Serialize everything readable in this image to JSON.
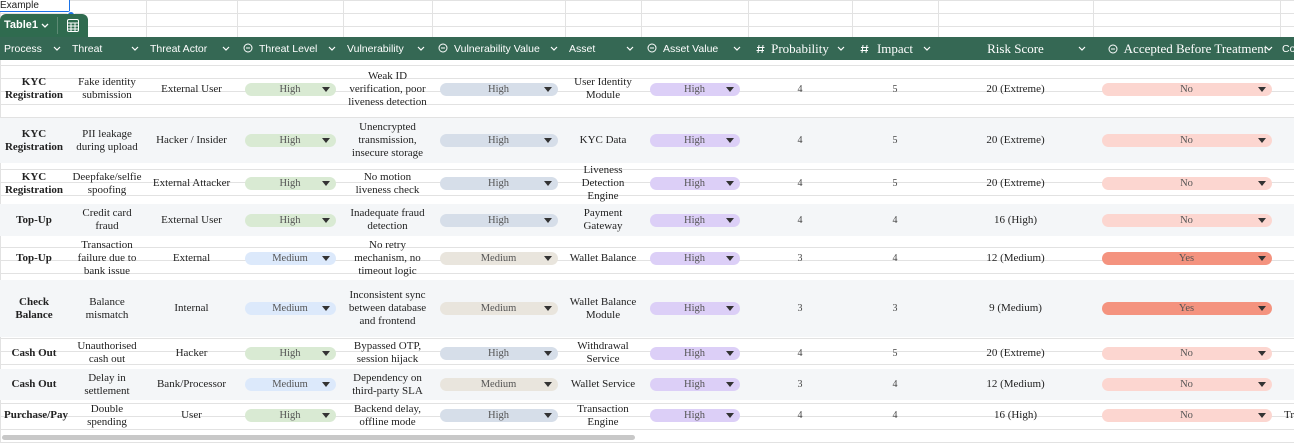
{
  "sheet": {
    "cell_a1": "Example",
    "tab": "Table1"
  },
  "table": {
    "headers": [
      "Process",
      "Threat",
      "Threat Actor",
      "Threat Level",
      "Vulnerability",
      "Vulnerability Value",
      "Asset",
      "Asset Value",
      "Probability",
      "Impact",
      "Risk Score",
      "Accepted Before Treatment"
    ],
    "chip_colors": {
      "Threat Level": {
        "High": "#d9ead3",
        "Medium": "#dce9fb"
      },
      "Vulnerability Value": {
        "High": "#d6dee9",
        "Medium": "#e9e5dd"
      },
      "Asset Value": {
        "High": "#dccff7"
      },
      "Accepted Before Treatment": {
        "No": "#fcd6d0",
        "Yes": "#f4937f"
      }
    },
    "rows": [
      [
        "KYC Registration",
        "Fake identity submission",
        "External User",
        "High",
        "Weak ID verification, poor liveness detection",
        "High",
        "User Identity Module",
        "High",
        4,
        5,
        "20 (Extreme)",
        "No"
      ],
      [
        "KYC Registration",
        "PII leakage during upload",
        "Hacker / Insider",
        "High",
        "Unencrypted transmission, insecure storage",
        "High",
        "KYC Data",
        "High",
        4,
        5,
        "20 (Extreme)",
        "No"
      ],
      [
        "KYC Registration",
        "Deepfake/selfie spoofing",
        "External Attacker",
        "High",
        "No motion liveness check",
        "High",
        "Liveness Detection Engine",
        "High",
        4,
        5,
        "20 (Extreme)",
        "No"
      ],
      [
        "Top-Up",
        "Credit card fraud",
        "External User",
        "High",
        "Inadequate fraud detection",
        "High",
        "Payment Gateway",
        "High",
        4,
        4,
        "16 (High)",
        "No"
      ],
      [
        "Top-Up",
        "Transaction failure due to bank issue",
        "External",
        "Medium",
        "No retry mechanism, no timeout logic",
        "Medium",
        "Wallet Balance",
        "High",
        3,
        4,
        "12 (Medium)",
        "Yes"
      ],
      [
        "Check Balance",
        "Balance mismatch",
        "Internal",
        "Medium",
        "Inconsistent sync between database and frontend",
        "Medium",
        "Wallet Balance Module",
        "High",
        3,
        3,
        "9 (Medium)",
        "Yes"
      ],
      [
        "Cash Out",
        "Unauthorised cash out",
        "Hacker",
        "High",
        "Bypassed OTP, session hijack",
        "High",
        "Withdrawal Service",
        "High",
        4,
        5,
        "20 (Extreme)",
        "No"
      ],
      [
        "Cash Out",
        "Delay in settlement",
        "Bank/Processor",
        "Medium",
        "Dependency on third-party SLA",
        "Medium",
        "Wallet Service",
        "High",
        3,
        4,
        "12 (Medium)",
        "No"
      ],
      [
        "Purchase/Payment",
        "Double spending",
        "User",
        "High",
        "Backend delay, offline mode",
        "High",
        "Transaction Engine",
        "High",
        4,
        4,
        "16 (High)",
        "No"
      ]
    ],
    "clipped_column": {
      "header": "Co",
      "last_row": "Tr"
    }
  }
}
